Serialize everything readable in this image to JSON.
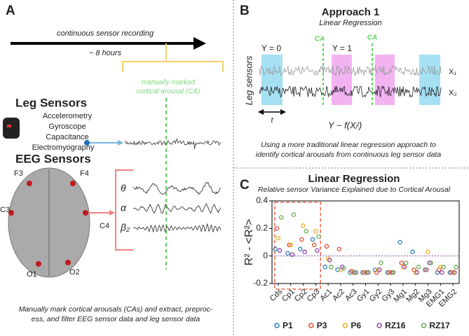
{
  "panel_a": {
    "letter": "A",
    "timeline": "continuous sensor recording",
    "duration": "~ 8 hours",
    "ca_label": [
      "manually marked",
      "cortical arousal (CA)"
    ],
    "leg_title": "Leg Sensors",
    "leg_sensors": [
      "Accelerometry",
      "Gyroscope",
      "Capacitance",
      "Electromyography"
    ],
    "eeg_title": "EEG Sensors",
    "electrodes": [
      "F3",
      "F4",
      "C3",
      "C4",
      "O1",
      "O2"
    ],
    "bands": [
      "θ",
      "α",
      "β₂"
    ],
    "caption": [
      "Manually mark cortical arousals (CAs) and extract, preproc-",
      "ess, and filter EEG sensor data and leg sensor data"
    ]
  },
  "panel_b": {
    "letter": "B",
    "title": "Approach 1",
    "subtitle": "Linear Regression",
    "ca": [
      "CA",
      "CA"
    ],
    "classes": [
      "Y = 0",
      "Y = 1"
    ],
    "ylabel": "Leg sensors",
    "t": "t",
    "signals": [
      "X₁",
      "X₂"
    ],
    "model": "Y ~ f(Xᵢᵗ)",
    "caption": [
      "Using a more traditional linear regression approach to",
      "identify cortical arousals from continuous leg sensor data"
    ]
  },
  "chart_data": {
    "type": "scatter",
    "letter": "C",
    "title": "Linear Regression",
    "subtitle": "Relative sensor Variance Explained due to Cortical Arousal",
    "ylabel": "R² - <R²>",
    "categories": [
      "Cds",
      "Cp1",
      "Cp2",
      "Cp3",
      "Ac1",
      "Ac2",
      "Ac3",
      "Gy1",
      "Gy2",
      "Gy3",
      "Mg1",
      "Mg2",
      "Mg3",
      "EMG1",
      "EMG2"
    ],
    "ylim": [
      -0.2,
      0.4
    ],
    "yticks": [
      -0.2,
      0,
      0.2,
      0.4
    ],
    "series": [
      {
        "name": "P1",
        "color": "#2c7fb8",
        "values": [
          0.05,
          0.02,
          0.05,
          0.12,
          -0.08,
          -0.1,
          -0.12,
          -0.12,
          -0.1,
          -0.12,
          0.1,
          0.03,
          -0.1,
          -0.12,
          -0.12
        ]
      },
      {
        "name": "P3",
        "color": "#e34a33",
        "values": [
          0.2,
          0.08,
          0.12,
          0.08,
          0.07,
          0.05,
          -0.11,
          -0.12,
          -0.12,
          -0.12,
          -0.05,
          -0.1,
          -0.1,
          -0.1,
          -0.12
        ]
      },
      {
        "name": "P6",
        "color": "#f0b020",
        "values": [
          0.13,
          0.08,
          0.22,
          0.18,
          -0.02,
          -0.1,
          -0.12,
          -0.12,
          -0.1,
          -0.12,
          -0.08,
          -0.12,
          0.03,
          -0.08,
          -0.12
        ]
      },
      {
        "name": "RZ16",
        "color": "#8e44ad",
        "values": [
          0.04,
          0.01,
          0.03,
          0.04,
          -0.03,
          -0.08,
          -0.12,
          -0.12,
          -0.1,
          -0.12,
          -0.08,
          -0.12,
          -0.05,
          -0.12,
          -0.12
        ]
      },
      {
        "name": "RZ17",
        "color": "#6aa84f",
        "values": [
          0.28,
          0.3,
          0.18,
          0.14,
          -0.08,
          -0.09,
          -0.12,
          -0.12,
          -0.05,
          -0.12,
          -0.05,
          -0.08,
          -0.05,
          -0.08,
          -0.08
        ]
      }
    ]
  }
}
